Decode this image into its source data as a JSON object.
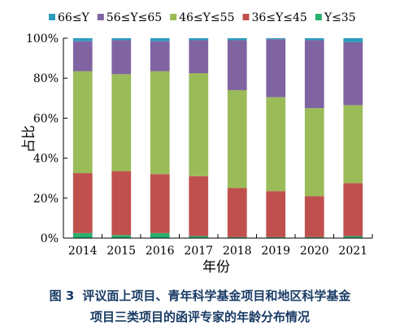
{
  "chart_data": {
    "type": "bar",
    "stacked": true,
    "categories": [
      "2014",
      "2015",
      "2016",
      "2017",
      "2018",
      "2019",
      "2020",
      "2021"
    ],
    "series": [
      {
        "name": "Y≤35",
        "color": "#2ab06e",
        "values": [
          2.5,
          1.5,
          2.5,
          1.0,
          0.5,
          0.5,
          0.5,
          1.0
        ]
      },
      {
        "name": "36≤Y≤45",
        "color": "#c0504d",
        "values": [
          30.0,
          32.0,
          29.5,
          30.0,
          24.5,
          23.0,
          20.5,
          26.5
        ]
      },
      {
        "name": "46≤Y≤55",
        "color": "#9bbb59",
        "values": [
          51.0,
          48.5,
          51.5,
          51.5,
          49.0,
          47.0,
          44.0,
          39.0
        ]
      },
      {
        "name": "56≤Y≤65",
        "color": "#8064a2",
        "values": [
          15.0,
          17.0,
          15.0,
          16.5,
          25.0,
          29.0,
          34.0,
          31.5
        ]
      },
      {
        "name": "66≤Y",
        "color": "#2e9cbd",
        "values": [
          1.5,
          1.0,
          1.5,
          1.0,
          1.0,
          0.5,
          1.0,
          2.0
        ]
      }
    ],
    "legend_order": [
      "66≤Y",
      "56≤Y≤65",
      "46≤Y≤55",
      "36≤Y≤45",
      "Y≤35"
    ],
    "ylim": [
      0,
      100
    ],
    "yticks": [
      "0%",
      "20%",
      "40%",
      "60%",
      "80%",
      "100%"
    ],
    "xlabel": "年份",
    "ylabel": "占比",
    "legend_position": "top",
    "grid": false
  },
  "caption": {
    "label": "图 3",
    "line1": "评议面上项目、青年科学基金项目和地区科学基金",
    "line2": "项目三类项目的函评专家的年龄分布情况"
  }
}
